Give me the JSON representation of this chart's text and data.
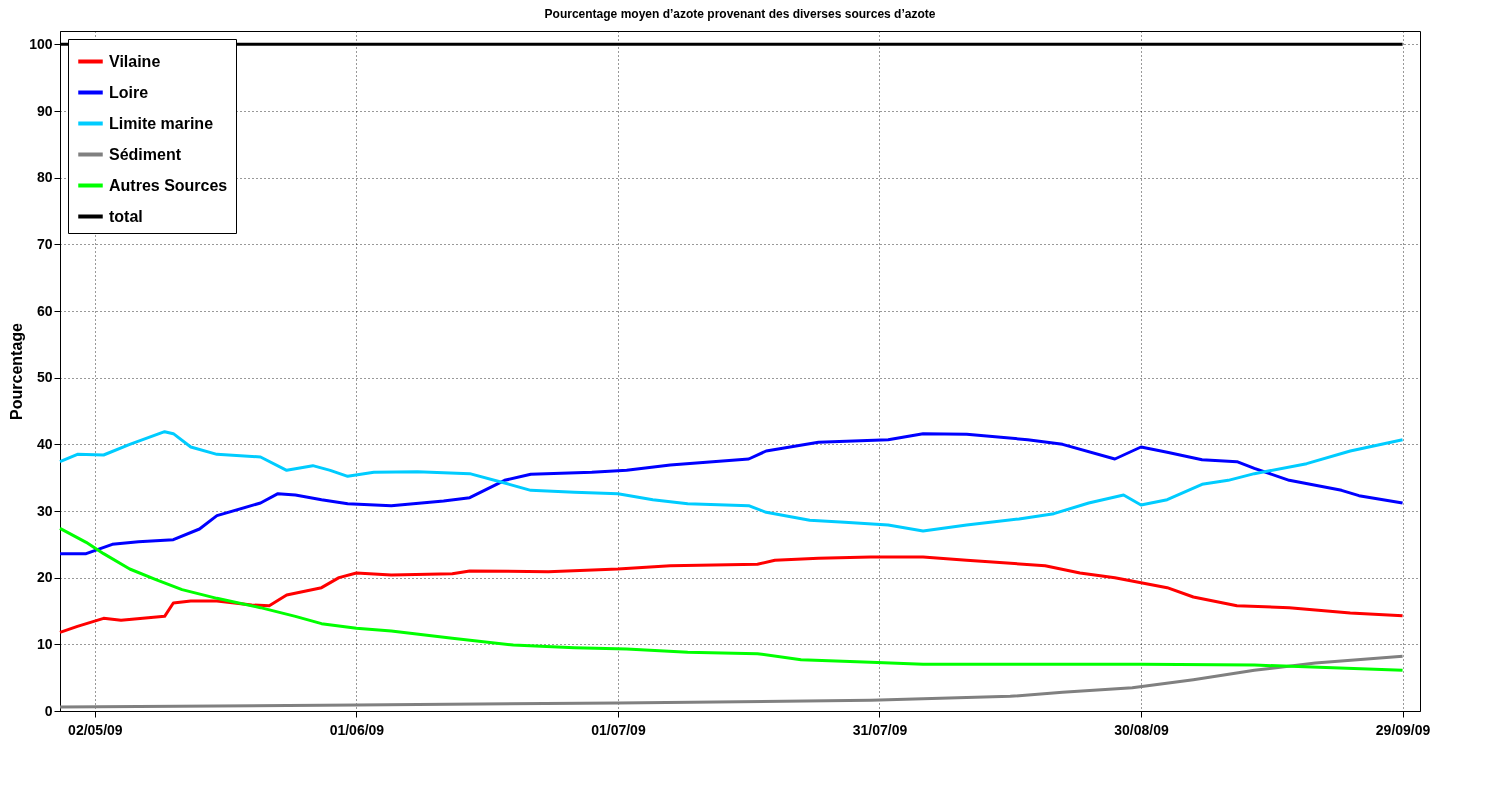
{
  "chart_data": {
    "type": "line",
    "title": "Pourcentage moyen d’azote provenant des diverses sources d’azote",
    "ylabel": "Pourcentage",
    "xlim": [
      "2009-04-28",
      "2009-10-01"
    ],
    "ylim": [
      0,
      102
    ],
    "xticks": [
      {
        "value": "2009-05-02",
        "label": "02/05/09"
      },
      {
        "value": "2009-06-01",
        "label": "01/06/09"
      },
      {
        "value": "2009-07-01",
        "label": "01/07/09"
      },
      {
        "value": "2009-07-31",
        "label": "31/07/09"
      },
      {
        "value": "2009-08-30",
        "label": "30/08/09"
      },
      {
        "value": "2009-09-29",
        "label": "29/09/09"
      }
    ],
    "yticks": [
      0,
      10,
      20,
      30,
      40,
      50,
      60,
      70,
      80,
      90,
      100
    ],
    "grid": true,
    "legend": "top left",
    "marker": "none",
    "line_style": "solid",
    "series": [
      {
        "name": "Vilaine",
        "color": "#ff0000",
        "x": [
          "2009-04-28",
          "2009-04-30",
          "2009-05-03",
          "2009-05-05",
          "2009-05-10",
          "2009-05-11",
          "2009-05-13",
          "2009-05-16",
          "2009-05-20",
          "2009-05-22",
          "2009-05-24",
          "2009-05-28",
          "2009-05-30",
          "2009-06-01",
          "2009-06-05",
          "2009-06-12",
          "2009-06-14",
          "2009-06-23",
          "2009-07-01",
          "2009-07-07",
          "2009-07-17",
          "2009-07-19",
          "2009-07-24",
          "2009-07-30",
          "2009-08-05",
          "2009-08-10",
          "2009-08-19",
          "2009-08-23",
          "2009-08-27",
          "2009-09-02",
          "2009-09-05",
          "2009-09-10",
          "2009-09-16",
          "2009-09-23",
          "2009-09-29"
        ],
        "values": [
          11.8,
          12.7,
          13.9,
          13.6,
          14.2,
          16.2,
          16.5,
          16.5,
          15.9,
          15.8,
          17.4,
          18.5,
          20,
          20.7,
          20.4,
          20.6,
          21,
          20.9,
          21.3,
          21.8,
          22,
          22.6,
          22.9,
          23.1,
          23.1,
          22.6,
          21.8,
          20.7,
          20,
          18.5,
          17.1,
          15.8,
          15.5,
          14.7,
          14.3
        ]
      },
      {
        "name": "Loire",
        "color": "#0000ff",
        "x": [
          "2009-04-28",
          "2009-05-01",
          "2009-05-04",
          "2009-05-07",
          "2009-05-11",
          "2009-05-14",
          "2009-05-16",
          "2009-05-21",
          "2009-05-23",
          "2009-05-25",
          "2009-05-28",
          "2009-05-31",
          "2009-06-05",
          "2009-06-11",
          "2009-06-14",
          "2009-06-18",
          "2009-06-21",
          "2009-06-28",
          "2009-07-02",
          "2009-07-07",
          "2009-07-16",
          "2009-07-18",
          "2009-07-24",
          "2009-08-01",
          "2009-08-05",
          "2009-08-10",
          "2009-08-17",
          "2009-08-21",
          "2009-08-27",
          "2009-08-30",
          "2009-09-02",
          "2009-09-06",
          "2009-09-10",
          "2009-09-12",
          "2009-09-16",
          "2009-09-22",
          "2009-09-24",
          "2009-09-29"
        ],
        "values": [
          23.6,
          23.6,
          25,
          25.4,
          25.7,
          27.3,
          29.3,
          31.2,
          32.6,
          32.4,
          31.7,
          31.1,
          30.8,
          31.5,
          32,
          34.6,
          35.5,
          35.8,
          36.1,
          36.9,
          37.8,
          39,
          40.3,
          40.7,
          41.6,
          41.5,
          40.7,
          40,
          37.8,
          39.6,
          38.8,
          37.7,
          37.4,
          36.4,
          34.6,
          33.1,
          32.3,
          31.2
        ]
      },
      {
        "name": "Limite marine",
        "color": "#00ccff",
        "x": [
          "2009-04-28",
          "2009-04-30",
          "2009-05-03",
          "2009-05-06",
          "2009-05-10",
          "2009-05-11",
          "2009-05-13",
          "2009-05-16",
          "2009-05-21",
          "2009-05-24",
          "2009-05-27",
          "2009-05-29",
          "2009-05-31",
          "2009-06-03",
          "2009-06-08",
          "2009-06-14",
          "2009-06-18",
          "2009-06-21",
          "2009-06-26",
          "2009-07-01",
          "2009-07-05",
          "2009-07-09",
          "2009-07-16",
          "2009-07-18",
          "2009-07-23",
          "2009-07-27",
          "2009-08-01",
          "2009-08-05",
          "2009-08-10",
          "2009-08-16",
          "2009-08-20",
          "2009-08-24",
          "2009-08-28",
          "2009-08-30",
          "2009-09-02",
          "2009-09-06",
          "2009-09-09",
          "2009-09-12",
          "2009-09-18",
          "2009-09-23",
          "2009-09-29"
        ],
        "values": [
          37.4,
          38.5,
          38.4,
          40,
          41.9,
          41.6,
          39.6,
          38.5,
          38.1,
          36.1,
          36.8,
          36.1,
          35.2,
          35.8,
          35.9,
          35.6,
          34.2,
          33.1,
          32.8,
          32.6,
          31.7,
          31.1,
          30.8,
          29.8,
          28.6,
          28.3,
          27.9,
          27,
          27.9,
          28.8,
          29.6,
          31.2,
          32.4,
          30.9,
          31.7,
          34,
          34.6,
          35.6,
          37.1,
          39,
          40.7
        ]
      },
      {
        "name": "Sédiment",
        "color": "#808080",
        "x": [
          "2009-04-28",
          "2009-06-01",
          "2009-07-01",
          "2009-07-30",
          "2009-08-15",
          "2009-08-21",
          "2009-08-29",
          "2009-09-05",
          "2009-09-12",
          "2009-09-19",
          "2009-09-29"
        ],
        "values": [
          0.6,
          0.9,
          1.2,
          1.6,
          2.2,
          2.8,
          3.5,
          4.7,
          6.1,
          7.2,
          8.2
        ]
      },
      {
        "name": "Autres Sources",
        "color": "#00ff00",
        "x": [
          "2009-04-28",
          "2009-05-01",
          "2009-05-03",
          "2009-05-06",
          "2009-05-09",
          "2009-05-12",
          "2009-05-16",
          "2009-05-21",
          "2009-05-25",
          "2009-05-28",
          "2009-06-01",
          "2009-06-05",
          "2009-06-12",
          "2009-06-19",
          "2009-06-26",
          "2009-07-02",
          "2009-07-09",
          "2009-07-17",
          "2009-07-22",
          "2009-07-30",
          "2009-08-05",
          "2009-08-16",
          "2009-08-30",
          "2009-09-12",
          "2009-09-29"
        ],
        "values": [
          27.4,
          25.3,
          23.6,
          21.3,
          19.7,
          18.2,
          16.9,
          15.5,
          14.2,
          13.1,
          12.4,
          12,
          10.9,
          9.9,
          9.5,
          9.3,
          8.8,
          8.6,
          7.7,
          7.3,
          7,
          7,
          7,
          6.9,
          6.1
        ]
      },
      {
        "name": "total",
        "color": "#000000",
        "x": [
          "2009-04-28",
          "2009-09-29"
        ],
        "values": [
          100,
          100
        ]
      }
    ]
  }
}
